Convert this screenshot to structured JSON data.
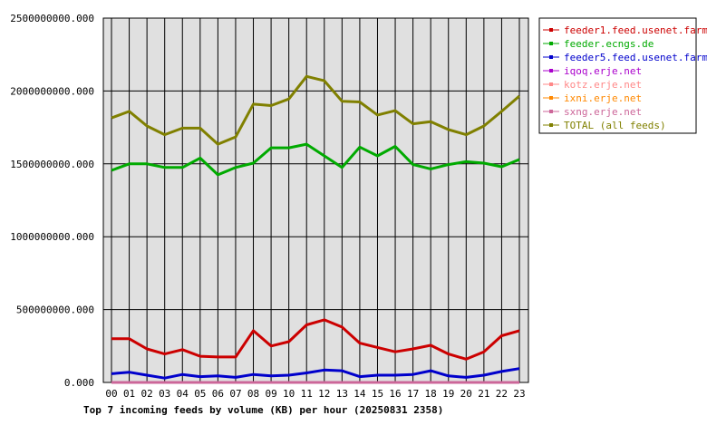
{
  "chart_data": {
    "type": "line",
    "title": "Top 7 incoming feeds by volume (KB) per hour (20250831 2358)",
    "xlabel": "",
    "ylabel": "",
    "categories": [
      "00",
      "01",
      "02",
      "03",
      "04",
      "05",
      "06",
      "07",
      "08",
      "09",
      "10",
      "11",
      "12",
      "13",
      "14",
      "15",
      "16",
      "17",
      "18",
      "19",
      "20",
      "21",
      "22",
      "23"
    ],
    "ylim": [
      0,
      2500000000
    ],
    "yticks": [
      "0.000",
      "500000000.000",
      "1000000000.000",
      "1500000000.000",
      "2000000000.000",
      "2500000000.000"
    ],
    "ytick_values": [
      0,
      500000000,
      1000000000,
      1500000000,
      2000000000,
      2500000000
    ],
    "grid": true,
    "legend_position": "right",
    "series": [
      {
        "name": "feeder1.feed.usenet.farm",
        "color": "#cc0000",
        "values": [
          300000000,
          300000000,
          230000000,
          195000000,
          225000000,
          180000000,
          175000000,
          175000000,
          355000000,
          250000000,
          280000000,
          395000000,
          430000000,
          380000000,
          270000000,
          240000000,
          210000000,
          230000000,
          255000000,
          195000000,
          160000000,
          210000000,
          320000000,
          355000000
        ]
      },
      {
        "name": "feeder.ecngs.de",
        "color": "#00aa00",
        "values": [
          1455000000,
          1500000000,
          1500000000,
          1475000000,
          1475000000,
          1540000000,
          1425000000,
          1475000000,
          1505000000,
          1610000000,
          1610000000,
          1635000000,
          1555000000,
          1475000000,
          1615000000,
          1555000000,
          1620000000,
          1495000000,
          1465000000,
          1495000000,
          1515000000,
          1505000000,
          1480000000,
          1530000000
        ]
      },
      {
        "name": "feeder5.feed.usenet.farm",
        "color": "#0000cc",
        "values": [
          60000000,
          70000000,
          50000000,
          30000000,
          55000000,
          40000000,
          45000000,
          35000000,
          55000000,
          45000000,
          50000000,
          65000000,
          85000000,
          80000000,
          40000000,
          50000000,
          50000000,
          55000000,
          80000000,
          45000000,
          35000000,
          50000000,
          75000000,
          95000000
        ]
      },
      {
        "name": "iqoq.erje.net",
        "color": "#aa00cc",
        "values": [
          0,
          0,
          0,
          0,
          0,
          0,
          0,
          0,
          0,
          0,
          0,
          0,
          0,
          0,
          0,
          0,
          0,
          0,
          0,
          0,
          0,
          0,
          0,
          0
        ]
      },
      {
        "name": "kotz.erje.net",
        "color": "#ff8888",
        "values": [
          0,
          0,
          0,
          0,
          0,
          0,
          0,
          0,
          0,
          0,
          0,
          0,
          0,
          0,
          0,
          0,
          0,
          0,
          0,
          0,
          0,
          0,
          0,
          0
        ]
      },
      {
        "name": "ixni.erje.net",
        "color": "#ff8800",
        "values": [
          0,
          0,
          0,
          0,
          0,
          0,
          0,
          0,
          0,
          0,
          0,
          0,
          0,
          0,
          0,
          0,
          0,
          0,
          0,
          0,
          0,
          0,
          0,
          0
        ]
      },
      {
        "name": "sxng.erje.net",
        "color": "#cc6699",
        "values": [
          0,
          0,
          0,
          0,
          0,
          0,
          0,
          0,
          0,
          0,
          0,
          0,
          0,
          0,
          0,
          0,
          0,
          0,
          0,
          0,
          0,
          0,
          0,
          0
        ]
      },
      {
        "name": "TOTAL (all feeds)",
        "color": "#808000",
        "values": [
          1815000000,
          1860000000,
          1760000000,
          1700000000,
          1745000000,
          1745000000,
          1635000000,
          1685000000,
          1910000000,
          1900000000,
          1945000000,
          2100000000,
          2070000000,
          1930000000,
          1925000000,
          1835000000,
          1865000000,
          1775000000,
          1790000000,
          1735000000,
          1700000000,
          1760000000,
          1860000000,
          1965000000
        ]
      }
    ]
  }
}
